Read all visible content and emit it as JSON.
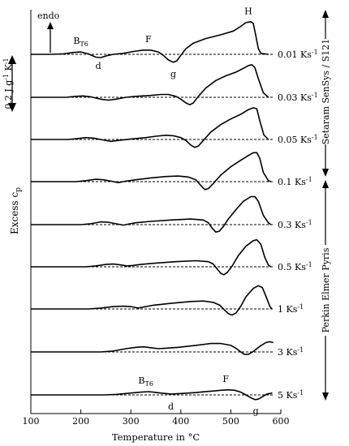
{
  "chart_data": {
    "type": "line",
    "title": "",
    "xlabel": "Temperature in °C",
    "ylabel": "Excess c",
    "ylabel_sub": "p",
    "xlim": [
      100,
      600
    ],
    "xticks": [
      100,
      200,
      300,
      400,
      500,
      600
    ],
    "grid": false,
    "scale_bar_label": "0.2 J g",
    "scale_bar_sup": "-1",
    "scale_bar_unit": " K",
    "scale_bar_unit_sup": "-1",
    "endo_label": "endo",
    "instruments": [
      {
        "name": "Setaram SenSys / S121",
        "series": [
          "0.01",
          "0.03",
          "0.05",
          "0.1"
        ]
      },
      {
        "name": "Perkin Elmer Pyris",
        "series": [
          "0.1",
          "0.3",
          "0.5",
          "1",
          "3",
          "5"
        ]
      }
    ],
    "series": [
      {
        "name": "0.01",
        "unit": " Ks",
        "unit_sup": "-1",
        "start": 100,
        "end": 580,
        "points": [
          [
            100,
            0
          ],
          [
            140,
            0
          ],
          [
            165,
            0.005
          ],
          [
            185,
            0.02
          ],
          [
            200,
            0.025
          ],
          [
            215,
            0.005
          ],
          [
            230,
            -0.03
          ],
          [
            240,
            -0.035
          ],
          [
            252,
            -0.015
          ],
          [
            265,
            0
          ],
          [
            285,
            0.01
          ],
          [
            305,
            0.03
          ],
          [
            325,
            0.045
          ],
          [
            340,
            0.045
          ],
          [
            355,
            0.025
          ],
          [
            365,
            -0.01
          ],
          [
            375,
            -0.06
          ],
          [
            385,
            -0.085
          ],
          [
            392,
            -0.07
          ],
          [
            400,
            -0.01
          ],
          [
            410,
            0.06
          ],
          [
            425,
            0.12
          ],
          [
            450,
            0.17
          ],
          [
            480,
            0.21
          ],
          [
            505,
            0.25
          ],
          [
            520,
            0.3
          ],
          [
            530,
            0.34
          ],
          [
            540,
            0.35
          ],
          [
            545,
            0.33
          ],
          [
            550,
            0.2
          ],
          [
            555,
            0.06
          ],
          [
            560,
            0.01
          ],
          [
            575,
            0
          ]
        ]
      },
      {
        "name": "0.03",
        "unit": " Ks",
        "unit_sup": "-1",
        "start": 100,
        "end": 580,
        "points": [
          [
            100,
            0
          ],
          [
            150,
            0
          ],
          [
            170,
            0
          ],
          [
            190,
            0.01
          ],
          [
            205,
            0.015
          ],
          [
            220,
            0.005
          ],
          [
            240,
            -0.02
          ],
          [
            255,
            -0.03
          ],
          [
            270,
            -0.02
          ],
          [
            290,
            0
          ],
          [
            310,
            0.01
          ],
          [
            340,
            0.02
          ],
          [
            360,
            0.03
          ],
          [
            375,
            0.03
          ],
          [
            390,
            0.01
          ],
          [
            400,
            -0.02
          ],
          [
            410,
            -0.06
          ],
          [
            418,
            -0.08
          ],
          [
            425,
            -0.06
          ],
          [
            435,
            0.01
          ],
          [
            450,
            0.1
          ],
          [
            470,
            0.18
          ],
          [
            490,
            0.23
          ],
          [
            510,
            0.27
          ],
          [
            525,
            0.31
          ],
          [
            535,
            0.34
          ],
          [
            542,
            0.35
          ],
          [
            548,
            0.32
          ],
          [
            555,
            0.2
          ],
          [
            565,
            0.05
          ],
          [
            575,
            0
          ]
        ]
      },
      {
        "name": "0.05",
        "unit": " Ks",
        "unit_sup": "-1",
        "start": 100,
        "end": 580,
        "points": [
          [
            100,
            0
          ],
          [
            175,
            0
          ],
          [
            195,
            0.01
          ],
          [
            210,
            0.02
          ],
          [
            225,
            0.015
          ],
          [
            245,
            -0.005
          ],
          [
            260,
            -0.02
          ],
          [
            275,
            -0.01
          ],
          [
            300,
            0.005
          ],
          [
            330,
            0.02
          ],
          [
            350,
            0.035
          ],
          [
            370,
            0.045
          ],
          [
            385,
            0.04
          ],
          [
            400,
            0.02
          ],
          [
            410,
            -0.01
          ],
          [
            420,
            -0.06
          ],
          [
            428,
            -0.085
          ],
          [
            435,
            -0.07
          ],
          [
            445,
            -0.01
          ],
          [
            460,
            0.08
          ],
          [
            480,
            0.16
          ],
          [
            500,
            0.22
          ],
          [
            520,
            0.27
          ],
          [
            535,
            0.32
          ],
          [
            545,
            0.34
          ],
          [
            552,
            0.33
          ],
          [
            558,
            0.2
          ],
          [
            566,
            0.05
          ],
          [
            575,
            0
          ]
        ]
      },
      {
        "name": "0.1",
        "unit": " Ks",
        "unit_sup": "-1",
        "start": 100,
        "end": 580,
        "points": [
          [
            100,
            0
          ],
          [
            190,
            0
          ],
          [
            210,
            0.01
          ],
          [
            230,
            0.025
          ],
          [
            245,
            0.02
          ],
          [
            260,
            0.005
          ],
          [
            275,
            -0.01
          ],
          [
            290,
            0.005
          ],
          [
            310,
            0.02
          ],
          [
            340,
            0.04
          ],
          [
            370,
            0.055
          ],
          [
            395,
            0.06
          ],
          [
            415,
            0.05
          ],
          [
            430,
            0.02
          ],
          [
            440,
            -0.04
          ],
          [
            448,
            -0.085
          ],
          [
            455,
            -0.075
          ],
          [
            465,
            -0.02
          ],
          [
            480,
            0.07
          ],
          [
            500,
            0.16
          ],
          [
            520,
            0.23
          ],
          [
            535,
            0.28
          ],
          [
            545,
            0.31
          ],
          [
            552,
            0.31
          ],
          [
            558,
            0.25
          ],
          [
            565,
            0.1
          ],
          [
            575,
            0.01
          ],
          [
            580,
            0
          ]
        ]
      },
      {
        "name": "0.3",
        "unit": " Ks",
        "unit_sup": "-1",
        "start": 100,
        "end": 580,
        "points": [
          [
            100,
            0
          ],
          [
            200,
            0
          ],
          [
            220,
            0.01
          ],
          [
            240,
            0.03
          ],
          [
            255,
            0.025
          ],
          [
            270,
            0.01
          ],
          [
            285,
            -0.005
          ],
          [
            295,
            0.005
          ],
          [
            310,
            0.02
          ],
          [
            340,
            0.035
          ],
          [
            380,
            0.05
          ],
          [
            420,
            0.06
          ],
          [
            445,
            0.05
          ],
          [
            455,
            0.02
          ],
          [
            463,
            -0.04
          ],
          [
            470,
            -0.08
          ],
          [
            477,
            -0.07
          ],
          [
            485,
            -0.02
          ],
          [
            495,
            0.06
          ],
          [
            510,
            0.16
          ],
          [
            525,
            0.25
          ],
          [
            540,
            0.3
          ],
          [
            548,
            0.3
          ],
          [
            555,
            0.25
          ],
          [
            565,
            0.1
          ],
          [
            575,
            0.02
          ],
          [
            580,
            0
          ]
        ]
      },
      {
        "name": "0.5",
        "unit": " Ks",
        "unit_sup": "-1",
        "start": 100,
        "end": 580,
        "points": [
          [
            100,
            0
          ],
          [
            210,
            0
          ],
          [
            230,
            0.01
          ],
          [
            250,
            0.025
          ],
          [
            265,
            0.03
          ],
          [
            280,
            0.02
          ],
          [
            292,
            0.01
          ],
          [
            305,
            0.015
          ],
          [
            320,
            0.025
          ],
          [
            350,
            0.04
          ],
          [
            390,
            0.055
          ],
          [
            430,
            0.065
          ],
          [
            455,
            0.055
          ],
          [
            465,
            0.03
          ],
          [
            472,
            -0.02
          ],
          [
            480,
            -0.07
          ],
          [
            486,
            -0.085
          ],
          [
            493,
            -0.06
          ],
          [
            503,
            0.01
          ],
          [
            515,
            0.12
          ],
          [
            530,
            0.22
          ],
          [
            545,
            0.28
          ],
          [
            552,
            0.29
          ],
          [
            560,
            0.24
          ],
          [
            568,
            0.1
          ],
          [
            575,
            0.02
          ],
          [
            580,
            0
          ]
        ]
      },
      {
        "name": "1",
        "unit": " Ks",
        "unit_sup": "-1",
        "start": 100,
        "end": 580,
        "points": [
          [
            100,
            0
          ],
          [
            215,
            0
          ],
          [
            240,
            0.01
          ],
          [
            265,
            0.025
          ],
          [
            285,
            0.03
          ],
          [
            300,
            0.025
          ],
          [
            315,
            0.01
          ],
          [
            325,
            0.02
          ],
          [
            345,
            0.04
          ],
          [
            380,
            0.06
          ],
          [
            420,
            0.08
          ],
          [
            445,
            0.085
          ],
          [
            465,
            0.07
          ],
          [
            478,
            0.04
          ],
          [
            487,
            -0.01
          ],
          [
            495,
            -0.05
          ],
          [
            502,
            -0.065
          ],
          [
            510,
            -0.045
          ],
          [
            520,
            0.03
          ],
          [
            530,
            0.13
          ],
          [
            545,
            0.22
          ],
          [
            555,
            0.25
          ],
          [
            563,
            0.23
          ],
          [
            570,
            0.14
          ],
          [
            578,
            0.03
          ],
          [
            582,
            0
          ]
        ]
      },
      {
        "name": "3",
        "unit": " Ks",
        "unit_sup": "-1",
        "start": 100,
        "end": 585,
        "points": [
          [
            100,
            0
          ],
          [
            240,
            0
          ],
          [
            265,
            0.01
          ],
          [
            290,
            0.035
          ],
          [
            310,
            0.05
          ],
          [
            325,
            0.055
          ],
          [
            340,
            0.045
          ],
          [
            355,
            0.035
          ],
          [
            370,
            0.04
          ],
          [
            395,
            0.05
          ],
          [
            430,
            0.07
          ],
          [
            460,
            0.09
          ],
          [
            480,
            0.09
          ],
          [
            500,
            0.07
          ],
          [
            510,
            0.04
          ],
          [
            520,
            0.0
          ],
          [
            527,
            -0.025
          ],
          [
            535,
            -0.025
          ],
          [
            545,
            0.005
          ],
          [
            558,
            0.06
          ],
          [
            570,
            0.1
          ],
          [
            578,
            0.11
          ],
          [
            585,
            0.1
          ]
        ]
      },
      {
        "name": "5",
        "unit": " Ks",
        "unit_sup": "-1",
        "start": 100,
        "end": 583,
        "points": [
          [
            100,
            0
          ],
          [
            245,
            0
          ],
          [
            270,
            0.005
          ],
          [
            300,
            0.02
          ],
          [
            320,
            0.03
          ],
          [
            335,
            0.035
          ],
          [
            345,
            0.03
          ],
          [
            360,
            0.02
          ],
          [
            380,
            0.01
          ],
          [
            400,
            0.015
          ],
          [
            430,
            0.025
          ],
          [
            460,
            0.04
          ],
          [
            480,
            0.05
          ],
          [
            495,
            0.055
          ],
          [
            508,
            0.05
          ],
          [
            520,
            0.03
          ],
          [
            530,
            0.0
          ],
          [
            540,
            -0.03
          ],
          [
            548,
            -0.05
          ],
          [
            555,
            -0.045
          ],
          [
            563,
            -0.02
          ],
          [
            572,
            0.01
          ],
          [
            583,
            0.02
          ]
        ]
      }
    ],
    "annotations": [
      {
        "text": "B",
        "sub": "T6",
        "series": "0.01",
        "x": 200
      },
      {
        "text": "F",
        "series": "0.01",
        "x": 335
      },
      {
        "text": "H",
        "series": "0.01",
        "x": 535
      },
      {
        "text": "d",
        "series": "0.01",
        "x": 235
      },
      {
        "text": "g",
        "series": "0.01",
        "x": 385
      },
      {
        "text": "B",
        "sub": "T6",
        "series": "5",
        "x": 330
      },
      {
        "text": "F",
        "series": "5",
        "x": 490
      },
      {
        "text": "d",
        "series": "5",
        "x": 380
      },
      {
        "text": "g",
        "series": "5",
        "x": 550
      }
    ]
  }
}
